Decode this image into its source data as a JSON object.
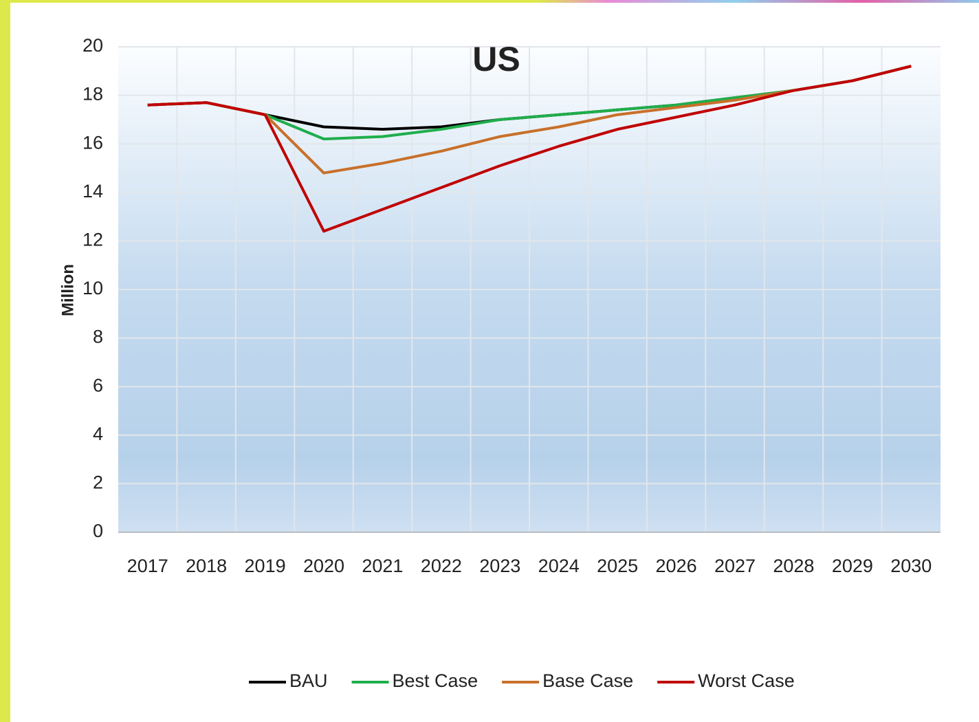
{
  "chart_data": {
    "type": "line",
    "title": "US",
    "y_label": "Million",
    "categories": [
      "2017",
      "2018",
      "2019",
      "2020",
      "2021",
      "2022",
      "2023",
      "2024",
      "2025",
      "2026",
      "2027",
      "2028",
      "2029",
      "2030"
    ],
    "series": [
      {
        "name": "BAU",
        "color": "#000000",
        "values": [
          17.6,
          17.7,
          17.2,
          16.7,
          16.6,
          16.7,
          17.0,
          17.2,
          17.4,
          17.6,
          17.9,
          18.2,
          18.6,
          19.2
        ]
      },
      {
        "name": "Best Case",
        "color": "#1fae4b",
        "values": [
          17.6,
          17.7,
          17.2,
          16.2,
          16.3,
          16.6,
          17.0,
          17.2,
          17.4,
          17.6,
          17.9,
          18.2,
          18.6,
          19.2
        ]
      },
      {
        "name": "Base Case",
        "color": "#c8702a",
        "values": [
          17.6,
          17.7,
          17.2,
          14.8,
          15.2,
          15.7,
          16.3,
          16.7,
          17.2,
          17.5,
          17.8,
          18.2,
          18.6,
          19.2
        ]
      },
      {
        "name": "Worst Case",
        "color": "#c00000",
        "values": [
          17.6,
          17.7,
          17.2,
          12.4,
          13.3,
          14.2,
          15.1,
          15.9,
          16.6,
          17.1,
          17.6,
          18.2,
          18.6,
          19.2
        ]
      }
    ],
    "ylim": [
      0,
      20
    ],
    "yticks": [
      0,
      2,
      4,
      6,
      8,
      10,
      12,
      14,
      16,
      18,
      20
    ],
    "grid": true,
    "legend": "bottom"
  }
}
